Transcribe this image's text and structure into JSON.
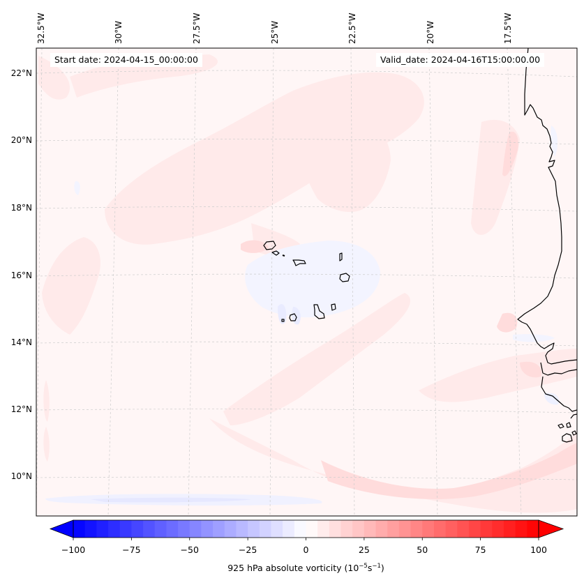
{
  "map": {
    "projection": "Lambert conformal",
    "field": "925 hPa absolute vorticity",
    "start_date_label": "Start date: 2024-04-15_00:00:00",
    "valid_date_label": "Valid_date: 2024-04-16T15:00:00.00",
    "lon_ticks": [
      "32.5°W",
      "30°W",
      "27.5°W",
      "25°W",
      "22.5°W",
      "20°W",
      "17.5°W"
    ],
    "lat_ticks": [
      "22°N",
      "20°N",
      "18°N",
      "16°N",
      "14°N",
      "12°N",
      "10°N"
    ],
    "extent": {
      "lon_min": -32.6,
      "lon_max": -15.6,
      "lat_min": 8.9,
      "lat_max": 22.8
    },
    "gridlines": "dashed light gray",
    "coastlines": [
      "Cape Verde islands",
      "West African coast (Mauritania, Senegal, Gambia, Guinea-Bissau, Guinea)"
    ],
    "features": [
      {
        "name": "NE-SW positive vorticity band",
        "sign": "positive",
        "approx_value": 5
      },
      {
        "name": "positive band south-west of Guinea coast",
        "sign": "positive",
        "approx_value": 10
      },
      {
        "name": "weak negative region around Cape Verde",
        "sign": "negative",
        "approx_value": -5
      },
      {
        "name": "weak negative zonal strip near 9.5°N",
        "sign": "negative",
        "approx_value": -5
      },
      {
        "name": "positive max near Cap-Vert (Dakar)",
        "sign": "positive",
        "approx_value": 15
      }
    ]
  },
  "colorbar": {
    "label_prefix": "925 hPa absolute vorticity (10",
    "label_exp1": "−5",
    "label_mid": "s",
    "label_exp2": "−1",
    "label_suffix": ")",
    "min": -100,
    "max": 100,
    "step": 5,
    "extend": "both",
    "ticks": [
      "−100",
      "−75",
      "−50",
      "−25",
      "0",
      "25",
      "50",
      "75",
      "100"
    ],
    "tick_values": [
      -100,
      -75,
      -50,
      -25,
      0,
      25,
      50,
      75,
      100
    ],
    "colormap": "bwr",
    "low_color": "#0000ff",
    "mid_color": "#ffffff",
    "high_color": "#ff0000"
  }
}
